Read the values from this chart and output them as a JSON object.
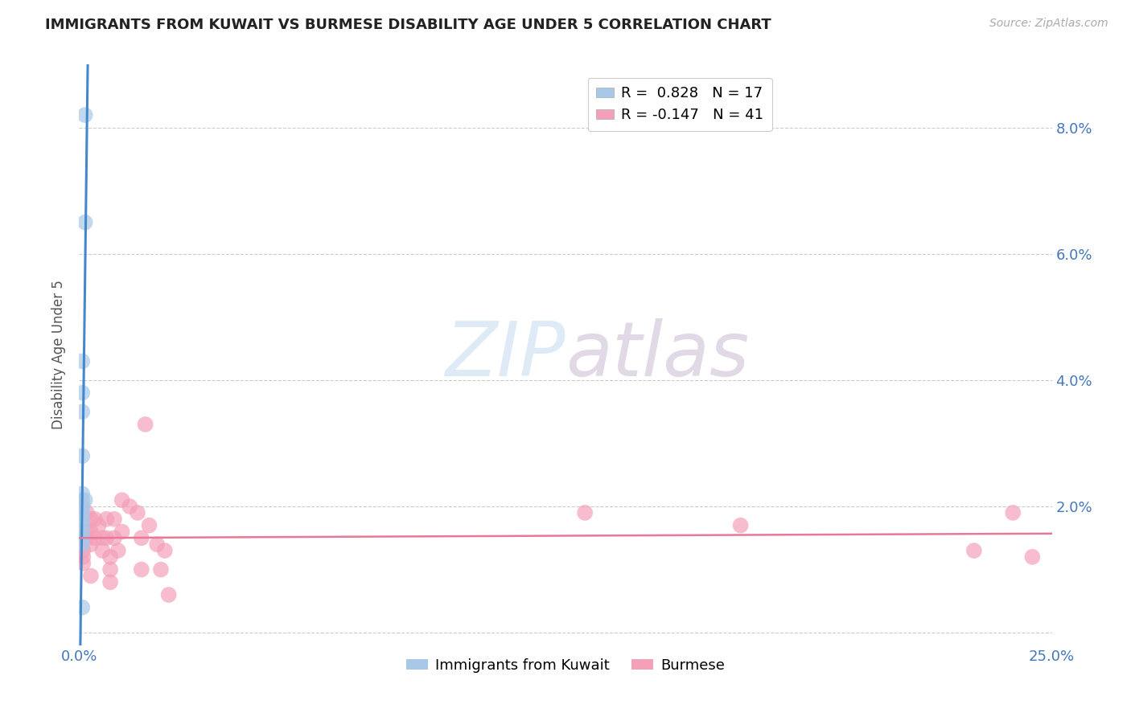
{
  "title": "IMMIGRANTS FROM KUWAIT VS BURMESE DISABILITY AGE UNDER 5 CORRELATION CHART",
  "source": "Source: ZipAtlas.com",
  "ylabel": "Disability Age Under 5",
  "xlim": [
    0.0,
    0.25
  ],
  "ylim": [
    -0.002,
    0.09
  ],
  "plot_ylim": [
    0.0,
    0.09
  ],
  "yticks": [
    0.0,
    0.02,
    0.04,
    0.06,
    0.08
  ],
  "ytick_labels": [
    "",
    "2.0%",
    "4.0%",
    "6.0%",
    "8.0%"
  ],
  "xticks": [
    0.0,
    0.05,
    0.1,
    0.15,
    0.2,
    0.25
  ],
  "xtick_labels": [
    "0.0%",
    "",
    "",
    "",
    "",
    "25.0%"
  ],
  "kuwait_R": 0.828,
  "kuwait_N": 17,
  "burmese_R": -0.147,
  "burmese_N": 41,
  "kuwait_color": "#a8c8e8",
  "burmese_color": "#f4a0b8",
  "kuwait_line_color": "#4488cc",
  "burmese_line_color": "#e87898",
  "kuwait_x": [
    0.0015,
    0.0015,
    0.0008,
    0.0008,
    0.0008,
    0.0008,
    0.0008,
    0.0008,
    0.0008,
    0.0008,
    0.0008,
    0.0008,
    0.0008,
    0.0015,
    0.0008,
    0.0008,
    0.0008
  ],
  "kuwait_y": [
    0.082,
    0.065,
    0.043,
    0.038,
    0.035,
    0.028,
    0.022,
    0.021,
    0.02,
    0.019,
    0.018,
    0.017,
    0.016,
    0.021,
    0.015,
    0.014,
    0.004
  ],
  "burmese_x": [
    0.001,
    0.001,
    0.001,
    0.001,
    0.002,
    0.002,
    0.002,
    0.003,
    0.003,
    0.003,
    0.003,
    0.004,
    0.004,
    0.005,
    0.006,
    0.006,
    0.007,
    0.007,
    0.008,
    0.008,
    0.008,
    0.009,
    0.009,
    0.01,
    0.011,
    0.011,
    0.013,
    0.015,
    0.016,
    0.016,
    0.017,
    0.018,
    0.02,
    0.021,
    0.022,
    0.023,
    0.13,
    0.17,
    0.23,
    0.24,
    0.245
  ],
  "burmese_y": [
    0.015,
    0.013,
    0.012,
    0.011,
    0.019,
    0.016,
    0.015,
    0.018,
    0.016,
    0.014,
    0.009,
    0.018,
    0.015,
    0.017,
    0.015,
    0.013,
    0.018,
    0.015,
    0.012,
    0.01,
    0.008,
    0.018,
    0.015,
    0.013,
    0.021,
    0.016,
    0.02,
    0.019,
    0.015,
    0.01,
    0.033,
    0.017,
    0.014,
    0.01,
    0.013,
    0.006,
    0.019,
    0.017,
    0.013,
    0.019,
    0.012
  ],
  "watermark_zip": "ZIP",
  "watermark_atlas": "atlas",
  "title_color": "#222222",
  "axis_label_color": "#4477bb",
  "title_fontsize": 13,
  "source_fontsize": 10,
  "tick_fontsize": 13,
  "ylabel_fontsize": 12
}
